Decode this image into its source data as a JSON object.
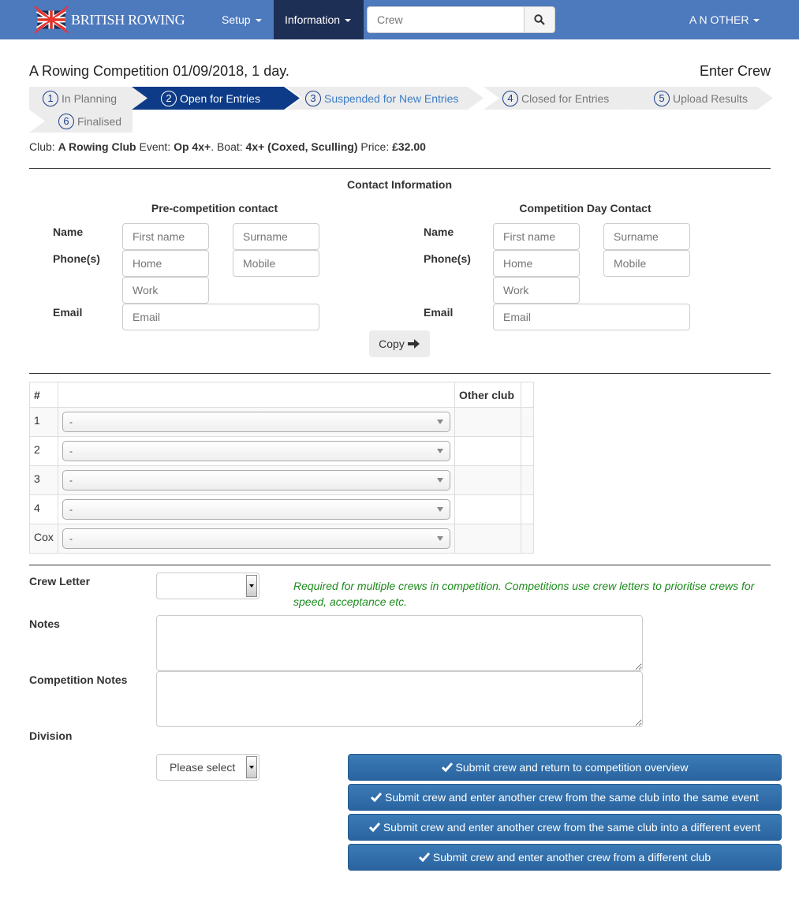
{
  "nav": {
    "brand": "BRITISH ROWING",
    "setup": "Setup",
    "information": "Information",
    "search_placeholder": "Crew",
    "user": "A N OTHER",
    "colors": {
      "nav_bg": "#4d79bd",
      "active": "#1e2f55"
    }
  },
  "page": {
    "title": "A Rowing Competition 01/09/2018, 1 day.",
    "action": "Enter Crew"
  },
  "steps": [
    {
      "num": "1",
      "label": "In Planning",
      "state": "done"
    },
    {
      "num": "2",
      "label": "Open for Entries",
      "state": "active"
    },
    {
      "num": "3",
      "label": "Suspended for New Entries",
      "state": "link"
    },
    {
      "num": "4",
      "label": "Closed for Entries",
      "state": "future"
    },
    {
      "num": "5",
      "label": "Upload Results",
      "state": "future"
    },
    {
      "num": "6",
      "label": "Finalised",
      "state": "future"
    }
  ],
  "summary": {
    "club_label": "Club:",
    "club": "A Rowing Club",
    "event_label": "Event:",
    "event": "Op 4x+",
    "boat_label": ". Boat:",
    "boat": "4x+ (Coxed, Sculling)",
    "price_label": "Price:",
    "price": "£32.00"
  },
  "contact": {
    "heading": "Contact Information",
    "pre": {
      "title": "Pre-competition contact"
    },
    "day": {
      "title": "Competition Day Contact"
    },
    "labels": {
      "name": "Name",
      "phones": "Phone(s)",
      "email": "Email"
    },
    "placeholders": {
      "first": "First name",
      "surname": "Surname",
      "home": "Home",
      "mobile": "Mobile",
      "work": "Work",
      "email": "Email"
    },
    "copy": "Copy"
  },
  "crew_table": {
    "headers": [
      "#",
      "",
      "Other club"
    ],
    "rows": [
      {
        "seat": "1",
        "value": "-"
      },
      {
        "seat": "2",
        "value": "-"
      },
      {
        "seat": "3",
        "value": "-"
      },
      {
        "seat": "4",
        "value": "-"
      },
      {
        "seat": "Cox",
        "value": "-"
      }
    ]
  },
  "form": {
    "crew_letter": "Crew Letter",
    "crew_letter_value": "",
    "help": "Required for multiple crews in competition. Competitions use crew letters to prioritise crews for speed, acceptance etc.",
    "notes": "Notes",
    "comp_notes": "Competition Notes",
    "division": "Division",
    "division_value": "Please select"
  },
  "buttons": [
    "Submit crew and return to competition overview",
    "Submit crew and enter another crew from the same club into the same event",
    "Submit crew and enter another crew from the same club into a different event",
    "Submit crew and enter another crew from a different club"
  ]
}
